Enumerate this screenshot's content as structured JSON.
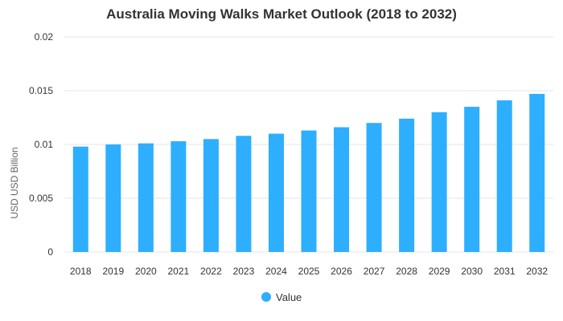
{
  "colors": {
    "bar": "#2eaeff",
    "grid": "#e6e6e6",
    "text": "#333333",
    "axis_text": "#666666"
  },
  "chart_data": {
    "type": "bar",
    "title": "Australia Moving Walks Market Outlook (2018 to 2032)",
    "xlabel": "",
    "ylabel": "USD USD Billion",
    "ylim": [
      0,
      0.02
    ],
    "yticks": [
      "0",
      "0.005",
      "0.01",
      "0.015",
      "0.02"
    ],
    "categories": [
      "2018",
      "2019",
      "2020",
      "2021",
      "2022",
      "2023",
      "2024",
      "2025",
      "2026",
      "2027",
      "2028",
      "2029",
      "2030",
      "2031",
      "2032"
    ],
    "series": [
      {
        "name": "Value",
        "values": [
          0.0098,
          0.01,
          0.0101,
          0.0103,
          0.0105,
          0.0108,
          0.011,
          0.0113,
          0.0116,
          0.012,
          0.0124,
          0.013,
          0.0135,
          0.0141,
          0.0147
        ]
      }
    ],
    "grid": true,
    "legend": "bottom-center"
  }
}
